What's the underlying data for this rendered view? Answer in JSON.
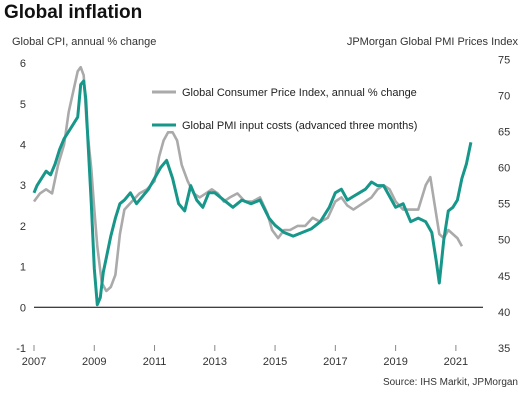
{
  "chart_data": {
    "type": "line",
    "title": "Global inflation",
    "ylabel_left": "Global  CPI, annual % change",
    "ylabel_right": "JPMorgan Global  PMI Prices Index",
    "source": "Source: IHS Markit, JPMorgan",
    "x_ticks": [
      "2007",
      "2009",
      "2011",
      "2013",
      "2015",
      "2017",
      "2019",
      "2021"
    ],
    "x_range": [
      2007.0,
      2021.9
    ],
    "y_left_ticks": [
      -1,
      0,
      1,
      2,
      3,
      4,
      5,
      6
    ],
    "y_left_range": [
      -1,
      6.2
    ],
    "y_right_ticks": [
      35,
      40,
      45,
      50,
      55,
      60,
      65,
      70,
      75
    ],
    "y_right_range": [
      35,
      75.6
    ],
    "legend_position": "top-right",
    "colors": {
      "cpi": "#aaaaaa",
      "pmi": "#17968a",
      "axis": "#000000"
    },
    "series": [
      {
        "name": "Global Consumer Price Index, annual % change",
        "axis": "left",
        "x": [
          2007.0,
          2007.2,
          2007.4,
          2007.6,
          2007.8,
          2008.0,
          2008.15,
          2008.3,
          2008.45,
          2008.55,
          2008.65,
          2008.75,
          2008.9,
          2009.0,
          2009.1,
          2009.25,
          2009.4,
          2009.55,
          2009.7,
          2009.85,
          2010.0,
          2010.25,
          2010.5,
          2010.75,
          2011.0,
          2011.15,
          2011.3,
          2011.45,
          2011.6,
          2011.75,
          2011.9,
          2012.1,
          2012.3,
          2012.5,
          2012.7,
          2012.9,
          2013.1,
          2013.3,
          2013.5,
          2013.75,
          2014.0,
          2014.25,
          2014.5,
          2014.75,
          2014.9,
          2015.1,
          2015.3,
          2015.5,
          2015.75,
          2016.0,
          2016.25,
          2016.5,
          2016.75,
          2017.0,
          2017.2,
          2017.4,
          2017.6,
          2017.8,
          2018.0,
          2018.2,
          2018.4,
          2018.6,
          2018.8,
          2019.0,
          2019.25,
          2019.5,
          2019.75,
          2020.0,
          2020.15,
          2020.3,
          2020.45,
          2020.6,
          2020.75,
          2020.9,
          2021.05,
          2021.2
        ],
        "values": [
          2.6,
          2.8,
          2.9,
          2.8,
          3.5,
          4.0,
          4.8,
          5.3,
          5.8,
          5.9,
          5.7,
          4.5,
          3.4,
          2.4,
          1.5,
          0.6,
          0.4,
          0.5,
          0.8,
          1.8,
          2.4,
          2.6,
          2.8,
          2.9,
          3.1,
          3.7,
          4.1,
          4.3,
          4.3,
          4.1,
          3.5,
          3.1,
          2.8,
          2.7,
          2.8,
          2.9,
          2.8,
          2.6,
          2.7,
          2.8,
          2.6,
          2.6,
          2.7,
          2.3,
          1.9,
          1.7,
          1.9,
          1.9,
          2.0,
          2.0,
          2.2,
          2.1,
          2.2,
          2.6,
          2.7,
          2.5,
          2.4,
          2.5,
          2.6,
          2.7,
          2.9,
          3.0,
          2.9,
          2.6,
          2.4,
          2.4,
          2.4,
          3.0,
          3.2,
          2.5,
          1.8,
          1.7,
          1.9,
          1.8,
          1.7,
          1.5
        ]
      },
      {
        "name": "Global PMI input costs (advanced three months)",
        "axis": "right",
        "x": [
          2007.0,
          2007.1,
          2007.25,
          2007.4,
          2007.55,
          2007.7,
          2007.85,
          2008.0,
          2008.15,
          2008.3,
          2008.45,
          2008.55,
          2008.65,
          2008.72,
          2008.8,
          2008.9,
          2009.0,
          2009.1,
          2009.2,
          2009.3,
          2009.4,
          2009.55,
          2009.7,
          2009.85,
          2010.0,
          2010.2,
          2010.4,
          2010.6,
          2010.8,
          2011.0,
          2011.2,
          2011.4,
          2011.6,
          2011.8,
          2012.0,
          2012.2,
          2012.4,
          2012.6,
          2012.8,
          2013.0,
          2013.3,
          2013.6,
          2013.9,
          2014.2,
          2014.5,
          2014.8,
          2015.0,
          2015.3,
          2015.6,
          2015.9,
          2016.2,
          2016.5,
          2016.8,
          2017.0,
          2017.2,
          2017.4,
          2017.6,
          2017.8,
          2018.0,
          2018.2,
          2018.4,
          2018.6,
          2018.8,
          2019.0,
          2019.25,
          2019.5,
          2019.75,
          2020.0,
          2020.2,
          2020.35,
          2020.45,
          2020.6,
          2020.75,
          2020.9,
          2021.05,
          2021.2,
          2021.35,
          2021.5
        ],
        "values": [
          56.5,
          57.5,
          58.5,
          59.5,
          59.0,
          60.5,
          62.5,
          64.0,
          65.0,
          66.0,
          67.0,
          71.5,
          72.0,
          69.5,
          63.0,
          55.0,
          46.0,
          41.0,
          42.0,
          45.5,
          47.5,
          50.5,
          53.0,
          55.0,
          55.5,
          56.5,
          55.0,
          56.0,
          57.0,
          58.5,
          60.0,
          61.0,
          58.5,
          55.0,
          54.0,
          57.5,
          55.5,
          54.5,
          56.5,
          56.5,
          55.5,
          54.5,
          55.5,
          55.0,
          55.5,
          53.0,
          52.0,
          51.0,
          50.5,
          51.0,
          51.5,
          52.5,
          54.5,
          56.5,
          57.0,
          55.5,
          56.0,
          56.5,
          57.0,
          58.0,
          57.5,
          57.5,
          56.0,
          54.5,
          55.0,
          52.5,
          53.0,
          52.5,
          51.0,
          47.0,
          44.0,
          50.0,
          54.0,
          54.5,
          55.5,
          58.5,
          60.5,
          63.5
        ]
      }
    ]
  }
}
